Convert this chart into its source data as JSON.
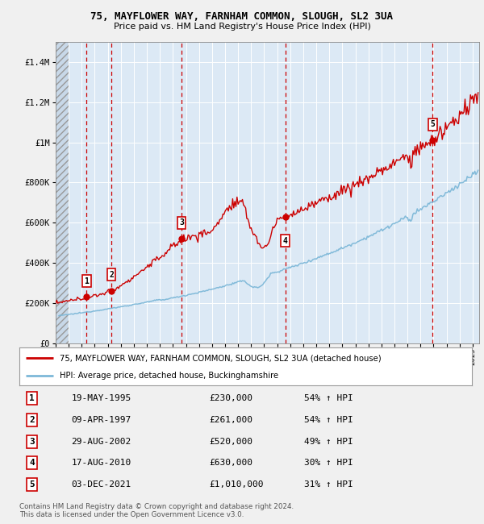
{
  "title1": "75, MAYFLOWER WAY, FARNHAM COMMON, SLOUGH, SL2 3UA",
  "title2": "Price paid vs. HM Land Registry's House Price Index (HPI)",
  "ylim": [
    0,
    1500000
  ],
  "yticks": [
    0,
    200000,
    400000,
    600000,
    800000,
    1000000,
    1200000,
    1400000
  ],
  "ytick_labels": [
    "£0",
    "£200K",
    "£400K",
    "£600K",
    "£800K",
    "£1M",
    "£1.2M",
    "£1.4M"
  ],
  "sale_dates_x": [
    1995.38,
    1997.27,
    2002.66,
    2010.63,
    2021.92
  ],
  "sale_prices_y": [
    230000,
    261000,
    520000,
    630000,
    1010000
  ],
  "sale_labels": [
    "1",
    "2",
    "3",
    "4",
    "5"
  ],
  "legend_line1": "75, MAYFLOWER WAY, FARNHAM COMMON, SLOUGH, SL2 3UA (detached house)",
  "legend_line2": "HPI: Average price, detached house, Buckinghamshire",
  "table_data": [
    [
      "1",
      "19-MAY-1995",
      "£230,000",
      "54% ↑ HPI"
    ],
    [
      "2",
      "09-APR-1997",
      "£261,000",
      "54% ↑ HPI"
    ],
    [
      "3",
      "29-AUG-2002",
      "£520,000",
      "49% ↑ HPI"
    ],
    [
      "4",
      "17-AUG-2010",
      "£630,000",
      "30% ↑ HPI"
    ],
    [
      "5",
      "03-DEC-2021",
      "£1,010,000",
      "31% ↑ HPI"
    ]
  ],
  "footer": "Contains HM Land Registry data © Crown copyright and database right 2024.\nThis data is licensed under the Open Government Licence v3.0.",
  "hpi_color": "#7db8d8",
  "sale_color": "#cc0000",
  "background_color": "#dce9f5",
  "grid_color": "#ffffff",
  "vline_color": "#cc0000",
  "fig_bg": "#f0f0f0"
}
